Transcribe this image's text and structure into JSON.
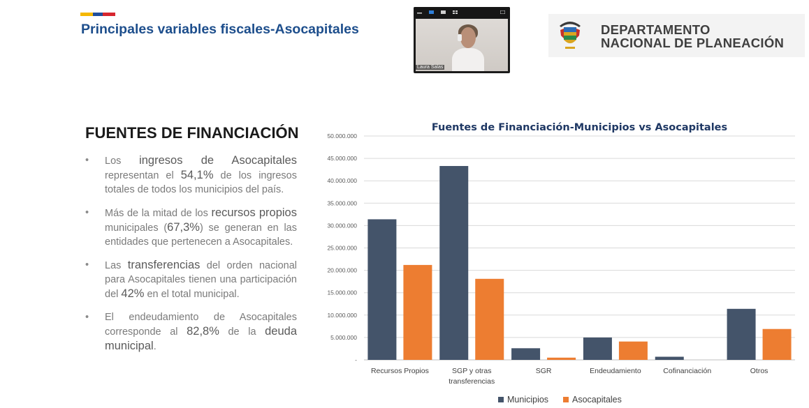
{
  "header": {
    "title": "Principales variables fiscales-Asocapitales",
    "flag_colors": [
      "#f5b800",
      "#1f4e9c",
      "#d7262f"
    ]
  },
  "video_call": {
    "participant_name": "Laura Salas",
    "icons": [
      "minimize-icon",
      "camera-icon",
      "layout-icon",
      "grid-icon",
      "fullscreen-icon"
    ]
  },
  "logo": {
    "line1": "DEPARTAMENTO",
    "line2": "NACIONAL DE PLANEACIÓN",
    "icon": "colombia-coat-of-arms-icon"
  },
  "section": {
    "heading": "FUENTES DE FINANCIACIÓN",
    "bullets": [
      {
        "parts": [
          {
            "t": "Los "
          },
          {
            "t": "ingresos de Asocapitales",
            "b": true
          },
          {
            "t": " representan el "
          },
          {
            "t": "54,1%",
            "b": true
          },
          {
            "t": " de los ingresos totales de todos los municipios del país."
          }
        ]
      },
      {
        "parts": [
          {
            "t": "Más de la mitad de los "
          },
          {
            "t": "recursos propios",
            "b": true
          },
          {
            "t": " municipales ("
          },
          {
            "t": "67,3%",
            "b": true
          },
          {
            "t": ") se generan en las entidades que pertenecen a Asocapitales."
          }
        ]
      },
      {
        "parts": [
          {
            "t": "Las "
          },
          {
            "t": "transferencias",
            "b": true
          },
          {
            "t": " del orden nacional para Asocapitales tienen una participación del "
          },
          {
            "t": "42%",
            "b": true
          },
          {
            "t": " en el total municipal."
          }
        ]
      },
      {
        "parts": [
          {
            "t": "El endeudamiento de Asocapitales corresponde al "
          },
          {
            "t": "82,8%",
            "b": true
          },
          {
            "t": " de la "
          },
          {
            "t": "deuda municipal",
            "b": true
          },
          {
            "t": "."
          }
        ]
      }
    ]
  },
  "chart_data": {
    "type": "bar",
    "title": "Fuentes de Financiación-Municipios vs Asocapitales",
    "categories": [
      "Recursos Propios",
      "SGP y otras transferencias",
      "SGR",
      "Endeudamiento",
      "Cofinanciación",
      "Otros"
    ],
    "category_lines": [
      [
        "Recursos Propios"
      ],
      [
        "SGP y otras",
        "transferencias"
      ],
      [
        "SGR"
      ],
      [
        "Endeudamiento"
      ],
      [
        "Cofinanciación"
      ],
      [
        "Otros"
      ]
    ],
    "series": [
      {
        "name": "Municipios",
        "color": "#44546a",
        "values": [
          31400000,
          43300000,
          2600000,
          5000000,
          700000,
          11400000
        ]
      },
      {
        "name": "Asocapitales",
        "color": "#ed7d31",
        "values": [
          21200000,
          18100000,
          500000,
          4100000,
          0,
          6900000
        ]
      }
    ],
    "ylim": [
      0,
      50000000
    ],
    "yticks": [
      "-",
      "5.000.000",
      "10.000.000",
      "15.000.000",
      "20.000.000",
      "25.000.000",
      "30.000.000",
      "35.000.000",
      "40.000.000",
      "45.000.000",
      "50.000.000"
    ],
    "grid": true,
    "legend_position": "bottom"
  }
}
